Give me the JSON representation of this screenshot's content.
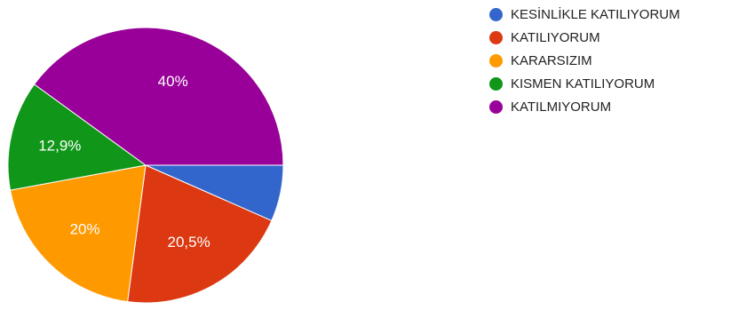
{
  "chart_data": {
    "type": "pie",
    "title": "",
    "categories": [
      "KESİNLİKLE KATILIYORUM",
      "KATILIYORUM",
      "KARARSIZIM",
      "KISMEN KATILIYORUM",
      "KATILMIYORUM"
    ],
    "values": [
      6.6,
      20.5,
      20,
      12.9,
      40
    ],
    "data_labels": [
      "",
      "20,5%",
      "20%",
      "12,9%",
      "40%"
    ],
    "colors": [
      "#3366cc",
      "#dc3912",
      "#ff9900",
      "#109618",
      "#990099"
    ],
    "legend_position": "right"
  }
}
